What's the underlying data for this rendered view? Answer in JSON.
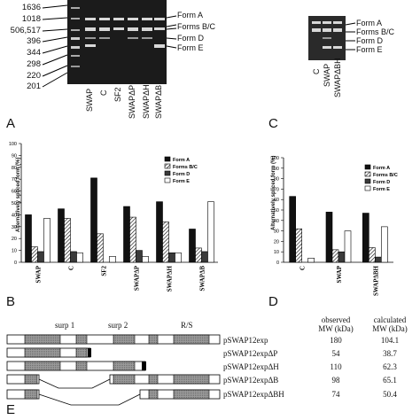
{
  "panels": {
    "A": "A",
    "B": "B",
    "C": "C",
    "D": "D",
    "E": "E"
  },
  "markers": [
    "1636",
    "1018",
    "506,517",
    "396",
    "344",
    "298",
    "220",
    "201"
  ],
  "gel_a": {
    "lanes": [
      "SWAP",
      "C",
      "SF2",
      "SWAPΔP",
      "SWAPΔH",
      "SWAPΔB"
    ],
    "forms": [
      "Form A",
      "Forms B/C",
      "Form D",
      "Form E"
    ]
  },
  "gel_c": {
    "lanes": [
      "C",
      "SWAP",
      "SWAPΔBH"
    ],
    "forms": [
      "Form A",
      "Forms B/C",
      "Form D",
      "Form E"
    ]
  },
  "chart_data": [
    {
      "type": "bar",
      "ylabel": "Alternatively spliced form (%)",
      "ylim": [
        0,
        100
      ],
      "yticks": [
        "0",
        "10",
        "20",
        "30",
        "40",
        "50",
        "60",
        "70",
        "80",
        "90",
        "100"
      ],
      "categories": [
        "SWAP",
        "C",
        "SF2",
        "SWAPΔP",
        "SWAPΔH",
        "SWAPΔB"
      ],
      "legend_position": "top-right",
      "series": [
        {
          "name": "Form A",
          "fill": "#111111",
          "values": [
            40,
            45,
            71,
            47,
            51,
            28
          ]
        },
        {
          "name": "Forms B/C",
          "fill": "hatch",
          "values": [
            13,
            37,
            24,
            38,
            34,
            12
          ]
        },
        {
          "name": "Form D",
          "fill": "#3a3a3a",
          "values": [
            9,
            9,
            0,
            10,
            8,
            9
          ]
        },
        {
          "name": "Form E",
          "fill": "#ffffff",
          "values": [
            37,
            8,
            5,
            5,
            8,
            51
          ]
        }
      ]
    },
    {
      "type": "bar",
      "ylabel": "Alternatively spliced form (%)",
      "ylim": [
        0,
        100
      ],
      "yticks": [
        "0",
        "10",
        "20",
        "30",
        "40",
        "50",
        "60",
        "70",
        "80",
        "90",
        "100"
      ],
      "categories": [
        "C",
        "SWAP",
        "SWAPΔBH"
      ],
      "legend_position": "top-right",
      "series": [
        {
          "name": "Form A",
          "fill": "#111111",
          "values": [
            63,
            48,
            47
          ]
        },
        {
          "name": "Forms B/C",
          "fill": "hatch",
          "values": [
            32,
            12,
            14
          ]
        },
        {
          "name": "Form D",
          "fill": "#3a3a3a",
          "values": [
            0,
            10,
            5
          ]
        },
        {
          "name": "Form E",
          "fill": "#ffffff",
          "values": [
            4,
            30,
            34
          ]
        }
      ]
    }
  ],
  "constructs": {
    "regions": [
      "surp 1",
      "surp 2",
      "R/S"
    ],
    "header_observed": "observed",
    "header_observed_unit": "MW (kDa)",
    "header_calculated": "calculated",
    "header_calculated_unit": "MW (kDa)",
    "rows": [
      {
        "name": "pSWAP12exp",
        "observed": "180",
        "calculated": "104.1"
      },
      {
        "name": "pSWAP12expΔP",
        "observed": "54",
        "calculated": "38.7"
      },
      {
        "name": "pSWAP12expΔH",
        "observed": "110",
        "calculated": "62.3"
      },
      {
        "name": "pSWAP12expΔB",
        "observed": "98",
        "calculated": "65.1"
      },
      {
        "name": "pSWAP12expΔBH",
        "observed": "74",
        "calculated": "50.4"
      }
    ]
  }
}
